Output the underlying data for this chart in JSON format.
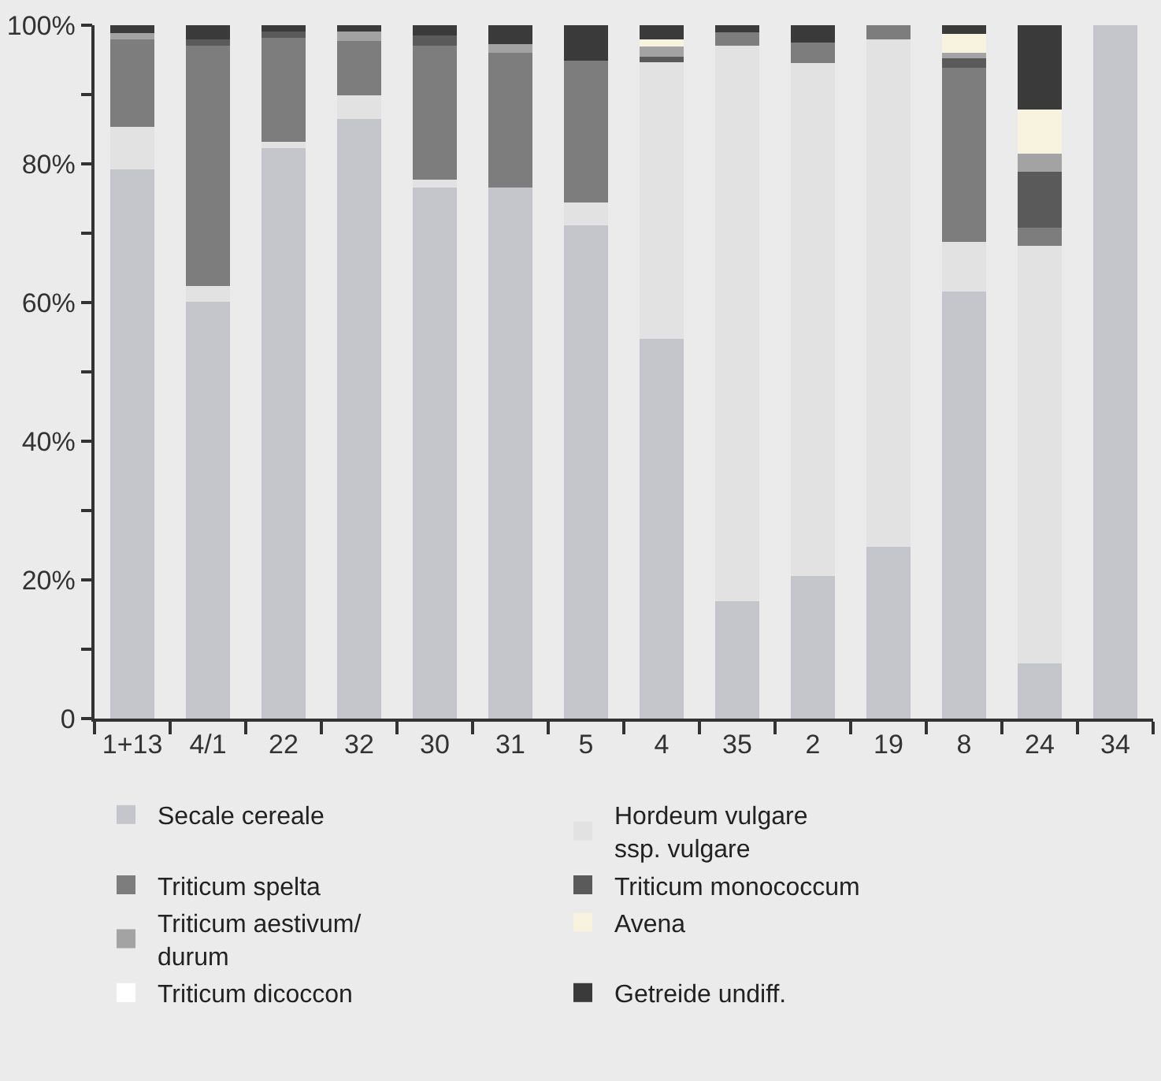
{
  "chart_data": {
    "type": "bar",
    "stacked": true,
    "categories": [
      "1+13",
      "4/1",
      "22",
      "32",
      "30",
      "31",
      "5",
      "4",
      "35",
      "2",
      "19",
      "8",
      "24",
      "34"
    ],
    "series": [
      {
        "name": "Secale cereale",
        "color": "#c4c6cc",
        "values": [
          79.2,
          60.1,
          82.3,
          86.5,
          76.6,
          76.6,
          71.1,
          54.8,
          16.9,
          20.6,
          24.8,
          61.6,
          7.9,
          100
        ]
      },
      {
        "name": "Hordeum vulgare\nssp. vulgare",
        "color": "#e2e2e2",
        "values": [
          6.1,
          2.3,
          0.9,
          3.4,
          1.1,
          0,
          3.3,
          39.9,
          80.1,
          73.9,
          73.1,
          7.1,
          60.3,
          0
        ]
      },
      {
        "name": "Triticum spelta",
        "color": "#7d7d7d",
        "values": [
          12.6,
          34.6,
          15.0,
          7.8,
          19.3,
          19.4,
          20.5,
          0,
          2.0,
          3.0,
          2.1,
          25.2,
          2.6,
          0
        ]
      },
      {
        "name": "Triticum monococcum",
        "color": "#5a5a5a",
        "values": [
          0,
          0.9,
          0.9,
          0,
          1.5,
          0,
          0,
          0.7,
          0,
          0,
          0,
          1.3,
          8.1,
          0
        ]
      },
      {
        "name": "Triticum aestivum/\ndurum",
        "color": "#a3a3a3",
        "values": [
          1.0,
          0,
          0,
          1.4,
          0,
          1.3,
          0,
          1.5,
          0,
          0,
          0,
          0.8,
          2.6,
          0
        ]
      },
      {
        "name": "Avena",
        "color": "#f7f3de",
        "values": [
          0,
          0,
          0,
          0,
          0,
          0,
          0,
          1.0,
          0,
          0,
          0,
          2.7,
          6.3,
          0
        ]
      },
      {
        "name": "Triticum dicoccon",
        "color": "#ffffff",
        "values": [
          0,
          0,
          0,
          0,
          0,
          0,
          0,
          0,
          0,
          0,
          0,
          0,
          0,
          0
        ]
      },
      {
        "name": "Getreide undiff.",
        "color": "#3a3a3a",
        "values": [
          1.1,
          2.1,
          0.9,
          0.9,
          1.5,
          2.7,
          5.1,
          2.1,
          1.0,
          2.5,
          0,
          1.3,
          12.2,
          0
        ]
      }
    ],
    "ylim": [
      0,
      100
    ],
    "yticks": [
      {
        "value": 0,
        "label": "0"
      },
      {
        "value": 10,
        "label": null
      },
      {
        "value": 20,
        "label": "20%"
      },
      {
        "value": 30,
        "label": null
      },
      {
        "value": 40,
        "label": "40%"
      },
      {
        "value": 50,
        "label": null
      },
      {
        "value": 60,
        "label": "60%"
      },
      {
        "value": 70,
        "label": null
      },
      {
        "value": 80,
        "label": "80%"
      },
      {
        "value": 90,
        "label": null
      },
      {
        "value": 100,
        "label": "100%"
      }
    ],
    "legend": "bottom"
  }
}
